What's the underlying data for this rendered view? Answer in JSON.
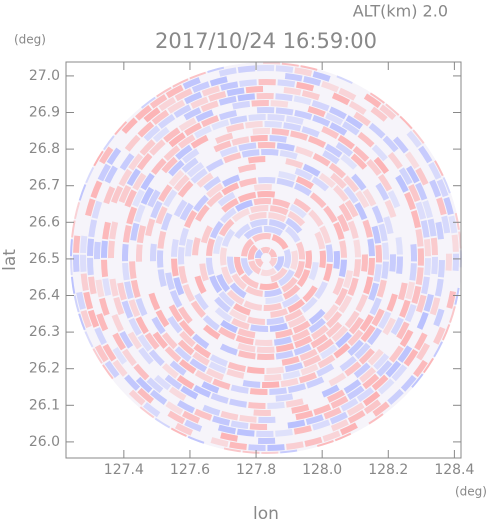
{
  "chart_data": {
    "type": "radar-ppi",
    "title": "2017/10/24 16:59:00",
    "subtitle": "ALT(km) 2.0",
    "x_label": "lon",
    "y_label": "lat",
    "x_unit": "(deg)",
    "y_unit": "(deg)",
    "xlim": [
      127.225,
      128.42
    ],
    "ylim": [
      25.956,
      27.038
    ],
    "xticks": [
      {
        "value": 127.4,
        "label": "127.4"
      },
      {
        "value": 127.6,
        "label": "127.6"
      },
      {
        "value": 127.8,
        "label": "127.8"
      },
      {
        "value": 128.0,
        "label": "128.0"
      },
      {
        "value": 128.2,
        "label": "128.2"
      },
      {
        "value": 128.4,
        "label": "128.4"
      }
    ],
    "yticks": [
      {
        "value": 26.0,
        "label": "26.0"
      },
      26.1,
      26.2,
      26.3,
      26.4,
      26.5,
      26.6,
      26.7,
      26.8,
      26.9,
      {
        "value": 27.0,
        "label": "27.0"
      }
    ]
  }
}
